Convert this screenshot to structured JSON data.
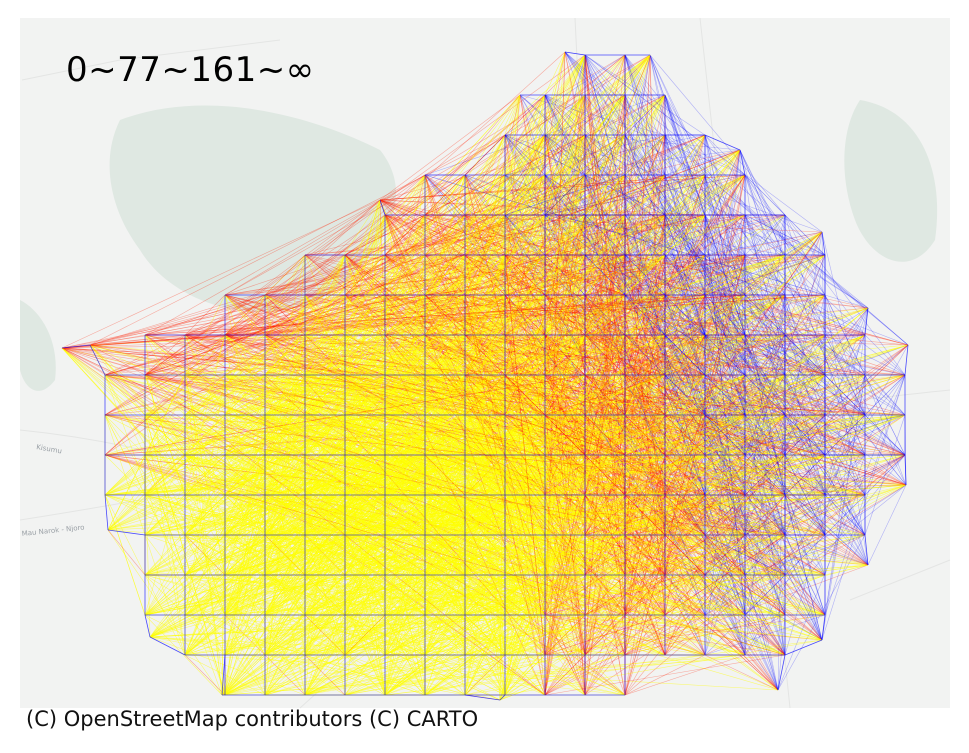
{
  "title": "0~77~161~∞",
  "attribution": "(C) OpenStreetMap contributors (C) CARTO",
  "road_labels": [
    "Mau Narok - Njoro",
    "Kisumu"
  ],
  "colors": {
    "basemap": "#f2f3f2",
    "park": "#dfe8e2",
    "near": "#ffff00",
    "mid": "#ff2000",
    "far": "#0000ff"
  },
  "legend_thresholds": [
    "0",
    "77",
    "161",
    "∞"
  ]
}
